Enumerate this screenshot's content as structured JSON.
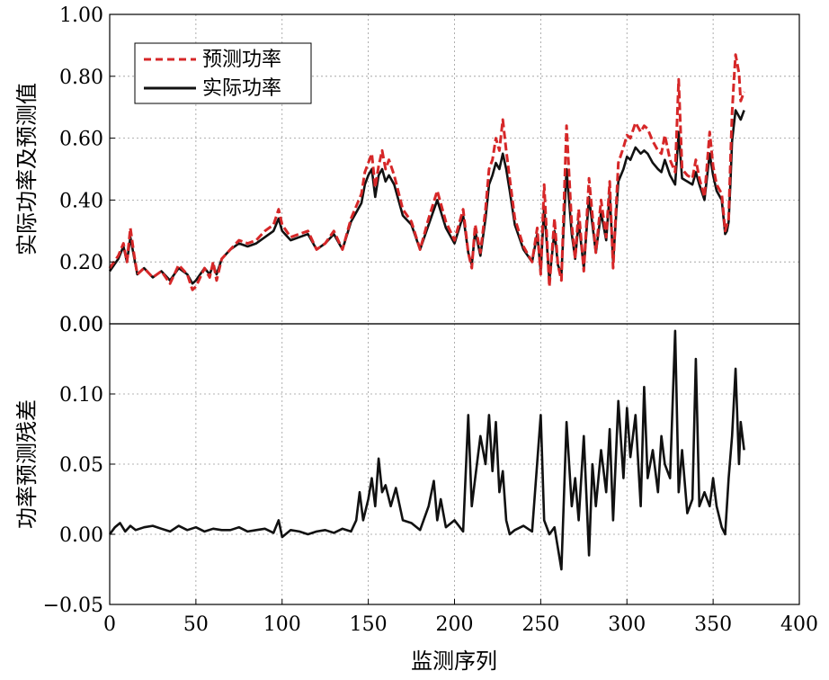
{
  "chart_data": [
    {
      "type": "line",
      "panel": "top",
      "ylabel": "实际功率及预测值",
      "xlim": [
        0,
        400
      ],
      "ylim": [
        0.0,
        1.0
      ],
      "yticks": [
        "0.00",
        "0.20",
        "0.40",
        "0.60",
        "0.80",
        "1.00"
      ],
      "grid": true,
      "legend_position": "top-left",
      "series": [
        {
          "name": "预测功率",
          "color": "#d62728",
          "style": "dashed",
          "x": [
            0,
            5,
            8,
            10,
            12,
            14,
            16,
            18,
            20,
            25,
            30,
            35,
            40,
            45,
            48,
            50,
            55,
            58,
            60,
            62,
            65,
            70,
            75,
            80,
            85,
            90,
            95,
            98,
            100,
            105,
            110,
            115,
            120,
            125,
            130,
            135,
            140,
            143,
            146,
            148,
            150,
            152,
            154,
            156,
            158,
            160,
            162,
            165,
            170,
            175,
            180,
            185,
            190,
            195,
            200,
            205,
            208,
            210,
            212,
            215,
            218,
            220,
            222,
            224,
            226,
            228,
            230,
            232,
            235,
            240,
            245,
            248,
            250,
            252,
            255,
            258,
            260,
            262,
            265,
            268,
            270,
            272,
            275,
            278,
            280,
            282,
            285,
            288,
            290,
            292,
            295,
            298,
            300,
            302,
            305,
            308,
            310,
            312,
            315,
            318,
            320,
            322,
            325,
            328,
            330,
            332,
            335,
            338,
            340,
            342,
            345,
            348,
            350,
            352,
            355,
            357,
            358,
            359,
            360,
            361,
            362,
            363,
            365,
            366,
            368
          ],
          "values": [
            0.18,
            0.22,
            0.26,
            0.2,
            0.31,
            0.23,
            0.16,
            0.17,
            0.18,
            0.15,
            0.17,
            0.13,
            0.19,
            0.16,
            0.11,
            0.12,
            0.18,
            0.15,
            0.2,
            0.14,
            0.21,
            0.24,
            0.27,
            0.26,
            0.27,
            0.3,
            0.32,
            0.37,
            0.32,
            0.28,
            0.29,
            0.3,
            0.24,
            0.26,
            0.3,
            0.24,
            0.34,
            0.38,
            0.42,
            0.49,
            0.52,
            0.55,
            0.44,
            0.51,
            0.56,
            0.5,
            0.53,
            0.48,
            0.37,
            0.33,
            0.24,
            0.34,
            0.43,
            0.33,
            0.27,
            0.37,
            0.23,
            0.18,
            0.32,
            0.23,
            0.37,
            0.5,
            0.53,
            0.6,
            0.56,
            0.66,
            0.56,
            0.47,
            0.34,
            0.25,
            0.2,
            0.31,
            0.16,
            0.45,
            0.12,
            0.34,
            0.19,
            0.14,
            0.64,
            0.32,
            0.21,
            0.37,
            0.17,
            0.47,
            0.35,
            0.23,
            0.4,
            0.28,
            0.46,
            0.18,
            0.52,
            0.57,
            0.61,
            0.6,
            0.65,
            0.62,
            0.64,
            0.63,
            0.59,
            0.56,
            0.55,
            0.61,
            0.53,
            0.49,
            0.79,
            0.5,
            0.48,
            0.47,
            0.53,
            0.47,
            0.41,
            0.62,
            0.51,
            0.45,
            0.42,
            0.3,
            0.32,
            0.34,
            0.52,
            0.68,
            0.78,
            0.87,
            0.81,
            0.72,
            0.75
          ]
        },
        {
          "name": "实际功率",
          "color": "#111111",
          "style": "solid",
          "x": [
            0,
            5,
            8,
            10,
            12,
            14,
            16,
            18,
            20,
            25,
            30,
            35,
            40,
            45,
            48,
            50,
            55,
            58,
            60,
            62,
            65,
            70,
            75,
            80,
            85,
            90,
            95,
            98,
            100,
            105,
            110,
            115,
            120,
            125,
            130,
            135,
            140,
            143,
            146,
            148,
            150,
            152,
            154,
            156,
            158,
            160,
            162,
            165,
            170,
            175,
            180,
            185,
            190,
            195,
            200,
            205,
            208,
            210,
            212,
            215,
            218,
            220,
            222,
            224,
            226,
            228,
            230,
            232,
            235,
            240,
            245,
            248,
            250,
            252,
            255,
            258,
            260,
            262,
            265,
            268,
            270,
            272,
            275,
            278,
            280,
            282,
            285,
            288,
            290,
            292,
            295,
            298,
            300,
            302,
            305,
            308,
            310,
            312,
            315,
            318,
            320,
            322,
            325,
            328,
            330,
            332,
            335,
            338,
            340,
            342,
            345,
            348,
            350,
            352,
            355,
            357,
            358,
            359,
            360,
            361,
            362,
            363,
            365,
            366,
            368
          ],
          "values": [
            0.17,
            0.21,
            0.25,
            0.2,
            0.28,
            0.22,
            0.16,
            0.17,
            0.18,
            0.15,
            0.17,
            0.14,
            0.18,
            0.16,
            0.13,
            0.14,
            0.18,
            0.16,
            0.19,
            0.16,
            0.21,
            0.24,
            0.26,
            0.25,
            0.26,
            0.28,
            0.3,
            0.34,
            0.3,
            0.27,
            0.28,
            0.29,
            0.24,
            0.26,
            0.29,
            0.24,
            0.33,
            0.36,
            0.39,
            0.45,
            0.48,
            0.5,
            0.41,
            0.48,
            0.5,
            0.46,
            0.48,
            0.45,
            0.35,
            0.32,
            0.24,
            0.32,
            0.4,
            0.31,
            0.26,
            0.35,
            0.23,
            0.19,
            0.3,
            0.22,
            0.34,
            0.45,
            0.48,
            0.52,
            0.5,
            0.55,
            0.5,
            0.43,
            0.32,
            0.24,
            0.2,
            0.29,
            0.17,
            0.38,
            0.14,
            0.3,
            0.19,
            0.16,
            0.5,
            0.29,
            0.21,
            0.33,
            0.18,
            0.41,
            0.32,
            0.23,
            0.36,
            0.27,
            0.42,
            0.2,
            0.46,
            0.5,
            0.54,
            0.53,
            0.57,
            0.55,
            0.56,
            0.55,
            0.52,
            0.5,
            0.49,
            0.53,
            0.48,
            0.45,
            0.62,
            0.47,
            0.46,
            0.45,
            0.49,
            0.45,
            0.4,
            0.55,
            0.48,
            0.43,
            0.4,
            0.29,
            0.3,
            0.33,
            0.45,
            0.59,
            0.64,
            0.69,
            0.67,
            0.66,
            0.69
          ]
        }
      ]
    },
    {
      "type": "line",
      "panel": "bottom",
      "xlabel": "监测序列",
      "ylabel": "功率预测残差",
      "xlim": [
        0,
        400
      ],
      "ylim": [
        -0.05,
        0.15
      ],
      "xticks": [
        "0",
        "50",
        "100",
        "150",
        "200",
        "250",
        "300",
        "350",
        "400"
      ],
      "yticks": [
        "-0.05",
        "0.00",
        "0.05",
        "0.10"
      ],
      "top_tick_label": "0.00",
      "grid": true,
      "series": [
        {
          "name": "",
          "color": "#111111",
          "style": "solid",
          "x": [
            0,
            3,
            6,
            9,
            12,
            15,
            20,
            25,
            30,
            35,
            40,
            45,
            50,
            55,
            60,
            65,
            70,
            75,
            80,
            85,
            90,
            95,
            98,
            100,
            105,
            110,
            115,
            120,
            125,
            130,
            135,
            140,
            143,
            145,
            147,
            150,
            152,
            154,
            156,
            158,
            160,
            163,
            166,
            170,
            175,
            180,
            185,
            188,
            190,
            192,
            195,
            200,
            205,
            208,
            210,
            212,
            215,
            218,
            220,
            222,
            224,
            226,
            228,
            230,
            232,
            235,
            240,
            245,
            250,
            252,
            255,
            258,
            262,
            265,
            268,
            270,
            272,
            275,
            278,
            280,
            282,
            285,
            288,
            290,
            292,
            295,
            298,
            300,
            302,
            305,
            308,
            310,
            312,
            315,
            318,
            320,
            322,
            325,
            328,
            330,
            332,
            335,
            338,
            340,
            342,
            345,
            348,
            350,
            352,
            355,
            357,
            359,
            361,
            363,
            365,
            366,
            368
          ],
          "values": [
            0.0,
            0.005,
            0.008,
            0.002,
            0.006,
            0.003,
            0.005,
            0.006,
            0.004,
            0.002,
            0.006,
            0.003,
            0.005,
            0.002,
            0.004,
            0.003,
            0.003,
            0.005,
            0.002,
            0.003,
            0.004,
            0.001,
            0.01,
            -0.002,
            0.003,
            0.002,
            0.0,
            0.002,
            0.003,
            0.001,
            0.004,
            0.002,
            0.01,
            0.03,
            0.01,
            0.025,
            0.04,
            0.02,
            0.054,
            0.03,
            0.035,
            0.02,
            0.033,
            0.01,
            0.008,
            0.003,
            0.02,
            0.038,
            0.01,
            0.025,
            0.005,
            0.01,
            0.002,
            0.085,
            0.02,
            0.04,
            0.07,
            0.05,
            0.085,
            0.045,
            0.08,
            0.03,
            0.045,
            0.01,
            0.0,
            0.003,
            0.006,
            0.002,
            0.085,
            0.01,
            0.0,
            0.005,
            -0.025,
            0.08,
            0.02,
            0.04,
            0.01,
            0.07,
            -0.015,
            0.05,
            0.02,
            0.06,
            0.03,
            0.075,
            0.01,
            0.095,
            0.04,
            0.09,
            0.055,
            0.085,
            0.02,
            0.105,
            0.04,
            0.06,
            0.03,
            0.07,
            0.05,
            0.04,
            0.145,
            0.03,
            0.06,
            0.015,
            0.025,
            0.125,
            0.02,
            0.03,
            0.02,
            0.04,
            0.02,
            0.005,
            0.0,
            0.04,
            0.07,
            0.118,
            0.05,
            0.08,
            0.06
          ]
        }
      ]
    }
  ]
}
